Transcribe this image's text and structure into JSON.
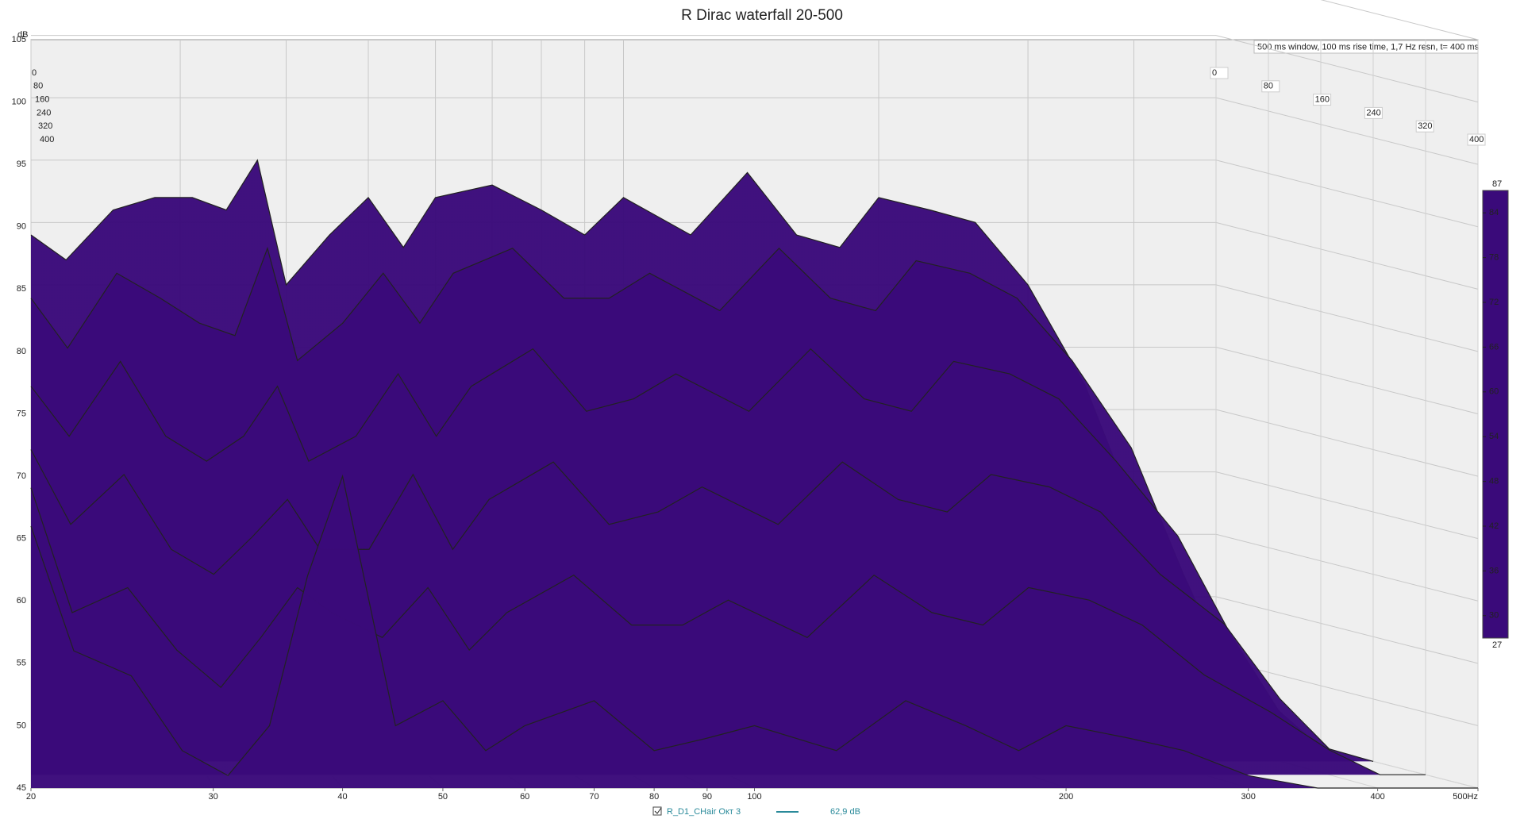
{
  "chart_data": {
    "type": "waterfall",
    "title": "R Dirac waterfall 20-500",
    "ylabel": "dB",
    "info": "500 ms window, 100 ms rise time,  1,7 Hz resn, t= 400 ms",
    "xlim": [
      20,
      500
    ],
    "xscale": "log",
    "xticks": [
      20,
      30,
      40,
      50,
      60,
      70,
      80,
      90,
      100,
      200,
      300,
      400,
      {
        "value": 500,
        "label": "500Hz"
      }
    ],
    "ylim": [
      45,
      105
    ],
    "yticks": [
      45,
      50,
      55,
      60,
      65,
      70,
      75,
      80,
      85,
      90,
      95,
      100,
      105
    ],
    "zlim": [
      0,
      400
    ],
    "zticks": [
      0,
      80,
      160,
      240,
      320,
      400
    ],
    "grid": true,
    "x": [
      20,
      22,
      25,
      28,
      31,
      34,
      37,
      40,
      45,
      50,
      55,
      60,
      70,
      80,
      90,
      100,
      120,
      140,
      160,
      180,
      200,
      230,
      260,
      300,
      350,
      400,
      450,
      500
    ],
    "series": [
      {
        "time": 0,
        "values": [
          84,
          82,
          86,
          87,
          87,
          86,
          90,
          80,
          84,
          87,
          83,
          87,
          88,
          86,
          84,
          87,
          84,
          89,
          84,
          83,
          87,
          86,
          85,
          80,
          72,
          62,
          52,
          45
        ]
      },
      {
        "time": 80,
        "values": [
          80,
          76,
          82,
          80,
          78,
          77,
          84,
          75,
          78,
          82,
          78,
          82,
          84,
          80,
          80,
          82,
          79,
          84,
          80,
          79,
          83,
          82,
          80,
          75,
          68,
          58,
          50,
          45
        ]
      },
      {
        "time": 160,
        "values": [
          74,
          70,
          76,
          70,
          68,
          70,
          74,
          68,
          70,
          75,
          70,
          74,
          77,
          72,
          73,
          75,
          72,
          77,
          73,
          72,
          76,
          75,
          73,
          68,
          62,
          54,
          48,
          45
        ]
      },
      {
        "time": 240,
        "values": [
          70,
          64,
          68,
          62,
          60,
          63,
          66,
          62,
          62,
          68,
          62,
          66,
          69,
          64,
          65,
          67,
          64,
          69,
          66,
          65,
          68,
          67,
          65,
          60,
          56,
          50,
          46,
          45
        ]
      },
      {
        "time": 320,
        "values": [
          68,
          58,
          60,
          55,
          52,
          56,
          60,
          58,
          56,
          60,
          55,
          58,
          61,
          57,
          57,
          59,
          56,
          61,
          58,
          57,
          60,
          59,
          57,
          53,
          50,
          47,
          45,
          45
        ]
      },
      {
        "time": 400,
        "values": [
          66,
          56,
          54,
          48,
          46,
          50,
          62,
          70,
          50,
          52,
          48,
          50,
          52,
          48,
          49,
          50,
          48,
          52,
          50,
          48,
          50,
          49,
          48,
          46,
          45,
          45,
          45,
          45
        ]
      }
    ],
    "colorbar": {
      "lim": [
        27,
        87
      ],
      "ticks": [
        30,
        36,
        42,
        48,
        54,
        60,
        66,
        72,
        78,
        84
      ]
    },
    "colorscale": [
      [
        27,
        "#3a0a7a"
      ],
      [
        36,
        "#1020c0"
      ],
      [
        42,
        "#1070b0"
      ],
      [
        48,
        "#10a0a0"
      ],
      [
        54,
        "#00c080"
      ],
      [
        60,
        "#00b020"
      ],
      [
        66,
        "#60c000"
      ],
      [
        72,
        "#e0d000"
      ],
      [
        78,
        "#f09000"
      ],
      [
        84,
        "#f04010"
      ],
      [
        87,
        "#e00000"
      ]
    ],
    "legend": {
      "name": "R_D1_CHair Окт 3",
      "value_label": "62,9 dB",
      "color": "#2a8a9a"
    }
  }
}
